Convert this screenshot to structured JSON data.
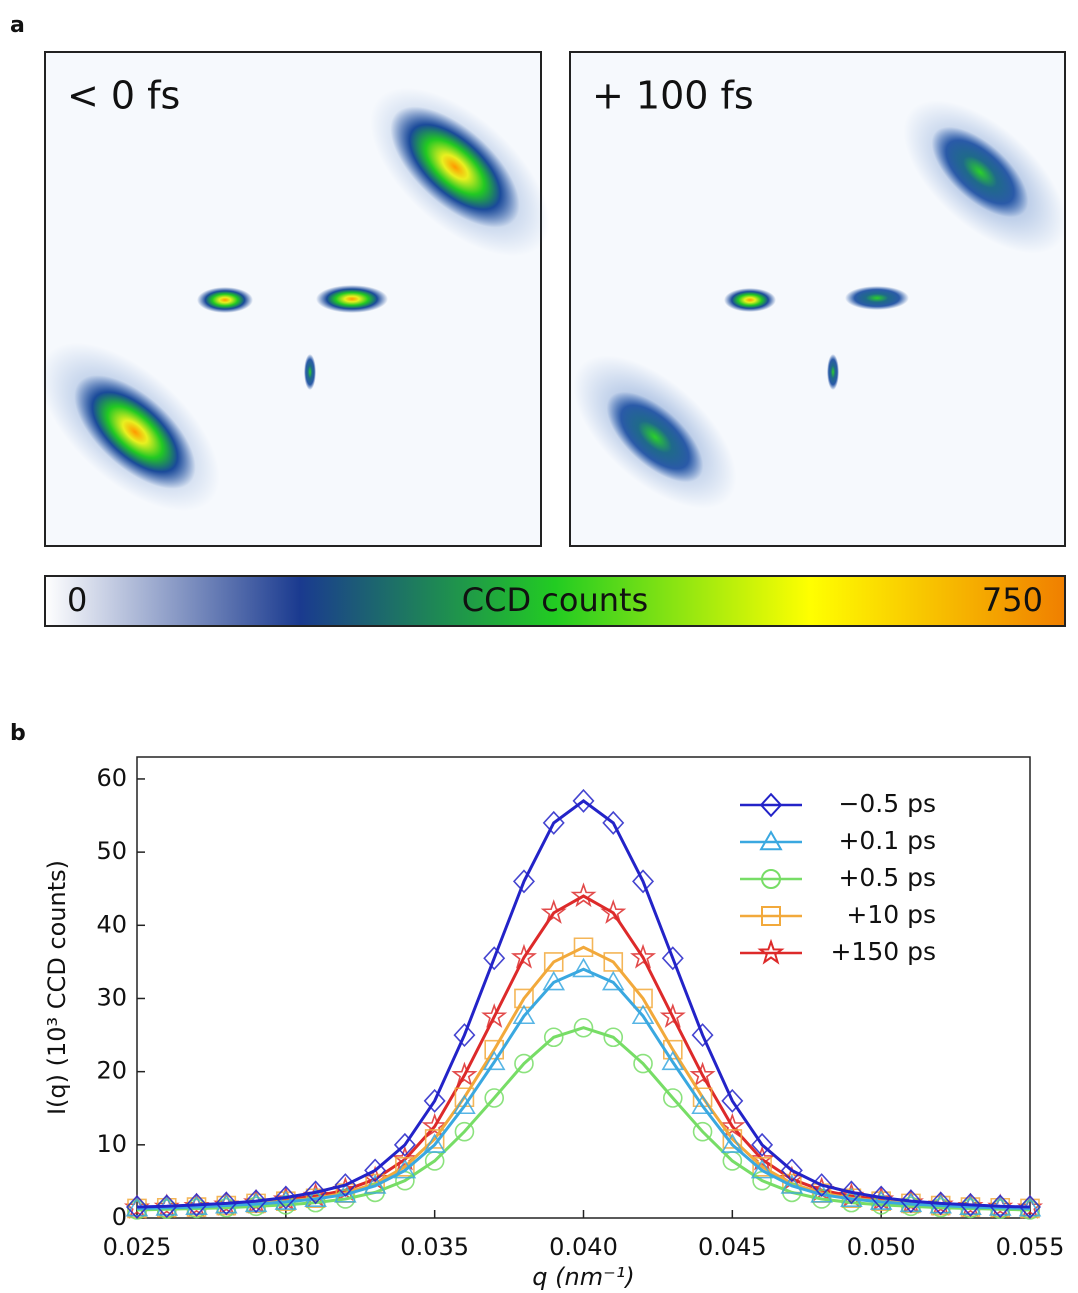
{
  "chart_data": [
    {
      "type": "image",
      "panel_label": "a",
      "panels": [
        {
          "label": "< 0 fs"
        },
        {
          "label": "+ 100 fs"
        }
      ],
      "colorbar": {
        "label": "CCD counts",
        "lim": [
          0,
          750
        ],
        "ticks": [
          0,
          750
        ],
        "colors": [
          "#ffffff",
          "#1a3a8f",
          "#22cc22",
          "#ffff00",
          "#f07f00"
        ]
      }
    },
    {
      "type": "line",
      "panel_label": "b",
      "xlabel": "q (nm⁻¹)",
      "ylabel": "I(q) (10³ CCD counts)",
      "xlim": [
        0.025,
        0.055
      ],
      "ylim": [
        0,
        63
      ],
      "xticks": [
        0.025,
        {
          "value": 0.03,
          "label": "0.030"
        },
        0.035,
        {
          "value": 0.04,
          "label": "0.040"
        },
        0.045,
        {
          "value": 0.05,
          "label": "0.050"
        },
        0.055
      ],
      "yticks": [
        0,
        10,
        20,
        30,
        40,
        50,
        60
      ],
      "legend": "upper right",
      "x": [
        0.025,
        0.026,
        0.027,
        0.028,
        0.029,
        0.03,
        0.031,
        0.032,
        0.033,
        0.034,
        0.035,
        0.036,
        0.037,
        0.038,
        0.039,
        0.04,
        0.041,
        0.042,
        0.043,
        0.044,
        0.045,
        0.046,
        0.047,
        0.048,
        0.049,
        0.05,
        0.051,
        0.052,
        0.053,
        0.054,
        0.055
      ],
      "series": [
        {
          "name": "−0.5 ps",
          "color": "#2323c8",
          "marker": "diamond",
          "values": [
            1.5,
            1.6,
            1.8,
            2,
            2.3,
            2.8,
            3.5,
            4.5,
            6.5,
            10,
            16,
            25,
            35.5,
            46,
            54,
            57,
            54,
            46,
            35.5,
            25,
            16,
            10,
            6.5,
            4.5,
            3.5,
            2.8,
            2.3,
            2,
            1.8,
            1.6,
            1.5
          ]
        },
        {
          "name": "+0.1 ps",
          "color": "#3aa8e0",
          "marker": "triangle",
          "values": [
            1.3,
            1.4,
            1.5,
            1.7,
            1.9,
            2.2,
            2.6,
            3.2,
            4.4,
            6.5,
            10,
            15.3,
            21.3,
            27.6,
            32.2,
            34,
            32.2,
            27.6,
            21.3,
            15.3,
            10,
            6.5,
            4.4,
            3.2,
            2.6,
            2.2,
            1.9,
            1.7,
            1.5,
            1.4,
            1.3
          ]
        },
        {
          "name": "+0.5 ps",
          "color": "#77dd66",
          "marker": "circle",
          "values": [
            1.1,
            1.2,
            1.3,
            1.4,
            1.6,
            1.8,
            2.1,
            2.6,
            3.5,
            5.1,
            7.8,
            11.8,
            16.4,
            21.1,
            24.7,
            26,
            24.7,
            21.1,
            16.4,
            11.8,
            7.8,
            5.1,
            3.5,
            2.6,
            2.1,
            1.8,
            1.6,
            1.4,
            1.3,
            1.2,
            1.1
          ]
        },
        {
          "name": "+10 ps",
          "color": "#f2a93b",
          "marker": "square",
          "values": [
            1.3,
            1.4,
            1.5,
            1.7,
            2,
            2.3,
            2.7,
            3.4,
            4.7,
            7,
            10.8,
            16.5,
            23,
            30,
            35,
            37,
            35,
            30,
            23,
            16.5,
            10.8,
            7,
            4.7,
            3.4,
            2.7,
            2.3,
            2,
            1.7,
            1.5,
            1.4,
            1.3
          ]
        },
        {
          "name": "+150 ps",
          "color": "#dd2a2a",
          "marker": "star",
          "values": [
            1.4,
            1.5,
            1.6,
            1.8,
            2.1,
            2.5,
            3,
            3.8,
            5.3,
            8,
            12.5,
            19.5,
            27.5,
            35.6,
            41.7,
            44,
            41.7,
            35.6,
            27.5,
            19.5,
            12.5,
            8,
            5.3,
            3.8,
            3,
            2.5,
            2.1,
            1.8,
            1.6,
            1.5,
            1.4
          ]
        }
      ]
    }
  ]
}
